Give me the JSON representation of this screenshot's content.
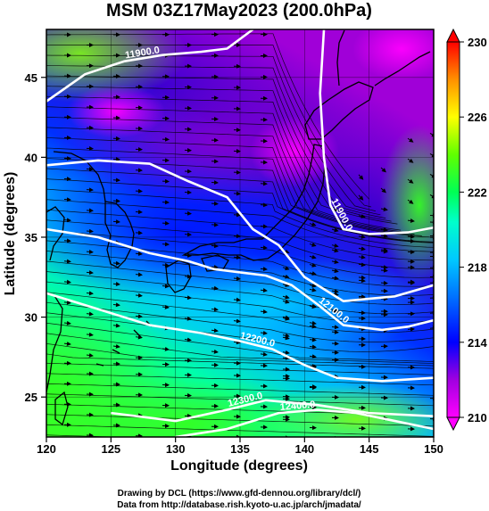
{
  "chart_data": {
    "type": "heatmap",
    "title": "MSM 03Z17May2023 (200.0hPa)",
    "xlabel": "Longitude (degrees)",
    "ylabel": "Latitude  (degrees)",
    "xlim": [
      120,
      150
    ],
    "ylim": [
      22.5,
      48
    ],
    "x_ticks": [
      120,
      125,
      130,
      135,
      140,
      145,
      150
    ],
    "y_ticks": [
      25,
      30,
      35,
      40,
      45
    ],
    "colorbar": {
      "min": 210,
      "max": 230,
      "ticks": [
        210,
        214,
        218,
        222,
        226,
        230
      ],
      "colors": [
        "#ff00ff",
        "#b000d8",
        "#5a00c8",
        "#0000ff",
        "#0050ff",
        "#0098ff",
        "#00d8ff",
        "#00ffcc",
        "#00ff55",
        "#30ff10",
        "#b0ff00",
        "#ffff00",
        "#ffb000",
        "#ff5000",
        "#ff0000"
      ]
    },
    "contours": [
      {
        "label": "11900.0",
        "points": [
          [
            120,
            43.5
          ],
          [
            123,
            45.2
          ],
          [
            126,
            46.0
          ],
          [
            129,
            46.4
          ],
          [
            132,
            46.6
          ],
          [
            134,
            46.8
          ],
          [
            136,
            48.0
          ]
        ]
      },
      {
        "label": "11900.0",
        "points": [
          [
            141.5,
            48.0
          ],
          [
            141.2,
            44.0
          ],
          [
            141.5,
            40.0
          ],
          [
            142.0,
            37.0
          ],
          [
            143.0,
            35.5
          ],
          [
            145,
            35.2
          ],
          [
            148,
            35.3
          ],
          [
            150,
            35.6
          ]
        ]
      },
      {
        "label": "",
        "points": [
          [
            120,
            39.5
          ],
          [
            124,
            39.8
          ],
          [
            128,
            39.6
          ],
          [
            131,
            38.5
          ],
          [
            134,
            37.5
          ],
          [
            136,
            35.5
          ],
          [
            138,
            34.5
          ],
          [
            140,
            32.5
          ],
          [
            143,
            31.0
          ],
          [
            147,
            31.3
          ],
          [
            150,
            32.0
          ]
        ]
      },
      {
        "label": "",
        "points": [
          [
            120,
            35.5
          ],
          [
            124,
            35.0
          ],
          [
            128,
            34.0
          ],
          [
            131,
            33.5
          ],
          [
            133,
            33.0
          ],
          [
            135,
            32.8
          ]
        ]
      },
      {
        "label": "12100.0",
        "points": [
          [
            135,
            32.8
          ],
          [
            137,
            32.6
          ],
          [
            139,
            32.0
          ],
          [
            141,
            30.8
          ],
          [
            143,
            29.5
          ],
          [
            146,
            29.2
          ],
          [
            148,
            29.4
          ],
          [
            150,
            29.8
          ]
        ]
      },
      {
        "label": "12200.0",
        "points": [
          [
            120,
            31.5
          ],
          [
            124,
            30.5
          ],
          [
            128,
            29.5
          ],
          [
            132,
            29.0
          ],
          [
            135,
            28.5
          ],
          [
            137.5,
            28.0
          ],
          [
            140,
            27.0
          ],
          [
            142.5,
            26.2
          ],
          [
            146,
            26.0
          ],
          [
            150,
            26.2
          ]
        ]
      },
      {
        "label": "12300.0",
        "points": [
          [
            125,
            24.0
          ],
          [
            130,
            23.5
          ],
          [
            134,
            24.2
          ],
          [
            137,
            24.8
          ],
          [
            141,
            24.5
          ],
          [
            145,
            24.0
          ],
          [
            150,
            23.8
          ]
        ]
      },
      {
        "label": "12400.0",
        "points": [
          [
            130,
            22.5
          ],
          [
            134,
            23.0
          ],
          [
            138,
            24.0
          ],
          [
            141,
            24.2
          ],
          [
            144,
            24.0
          ],
          [
            147,
            23.5
          ],
          [
            150,
            23.0
          ]
        ]
      }
    ]
  },
  "credits": {
    "line1": "Drawing by DCL (https://www.gfd-dennou.org/library/dcl/)",
    "line2": "Data from http://database.rish.kyoto-u.ac.jp/arch/jmadata/"
  }
}
